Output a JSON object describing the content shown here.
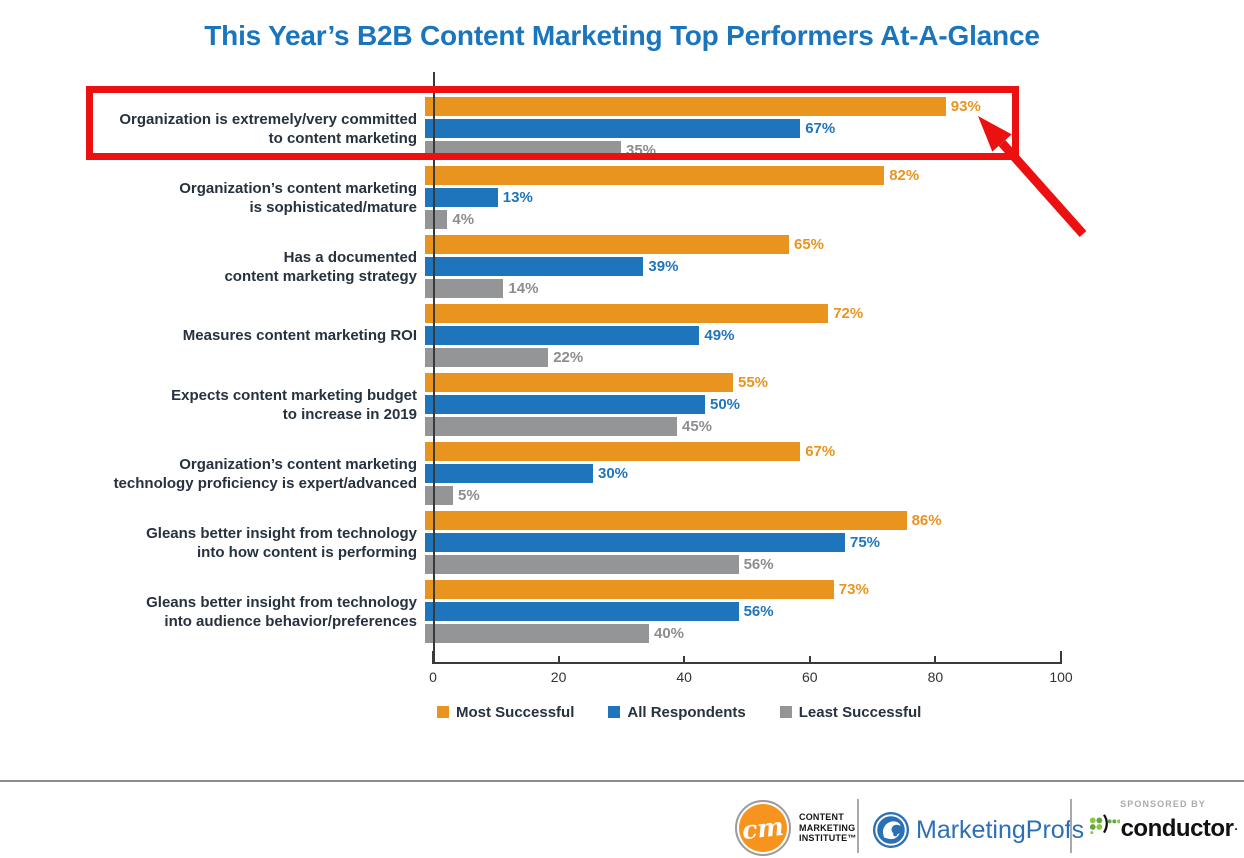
{
  "chart_data": {
    "type": "bar",
    "orientation": "horizontal",
    "title": "This Year’s B2B Content Marketing Top Performers At-A-Glance",
    "title_color": "#1B75BC",
    "categories": [
      "Organization is extremely/very committed\nto content marketing",
      "Organization’s content marketing\nis sophisticated/mature",
      "Has a documented\ncontent marketing strategy",
      "Measures content marketing ROI",
      "Expects content marketing budget\nto increase in 2019",
      "Organization’s content marketing\ntechnology proficiency is expert/advanced",
      "Gleans better insight from technology\ninto how content is performing",
      "Gleans better insight from technology\ninto audience behavior/preferences"
    ],
    "series": [
      {
        "name": "Most Successful",
        "color": "#E8941F",
        "label_color": "#E8941F",
        "values": [
          93,
          82,
          65,
          72,
          55,
          67,
          86,
          73
        ]
      },
      {
        "name": "All Respondents",
        "color": "#1F75BC",
        "label_color": "#1F75BC",
        "values": [
          67,
          13,
          39,
          49,
          50,
          30,
          75,
          56
        ]
      },
      {
        "name": "Least Successful",
        "color": "#949597",
        "label_color": "#8B8D90",
        "values": [
          35,
          4,
          14,
          22,
          45,
          5,
          56,
          40
        ]
      }
    ],
    "value_suffix": "%",
    "xlim": [
      0,
      100
    ],
    "x_ticks": [
      0,
      20,
      40,
      60,
      80,
      100
    ],
    "legend_position": "bottom",
    "grid": false
  },
  "annotations": {
    "highlight_color": "#EC1111",
    "highlighted_category": "Organization is extremely/very committed to content marketing",
    "highlighted_value": "93%"
  },
  "footer": {
    "cmi": {
      "monogram": "cm",
      "lines": [
        "CONTENT",
        "MARKETING",
        "INSTITUTE™"
      ]
    },
    "marketingprofs": {
      "text": "MarketingProfs"
    },
    "conductor": {
      "sponsored_by": "SPONSORED BY",
      "text": "conductor",
      "mark": "·"
    }
  }
}
